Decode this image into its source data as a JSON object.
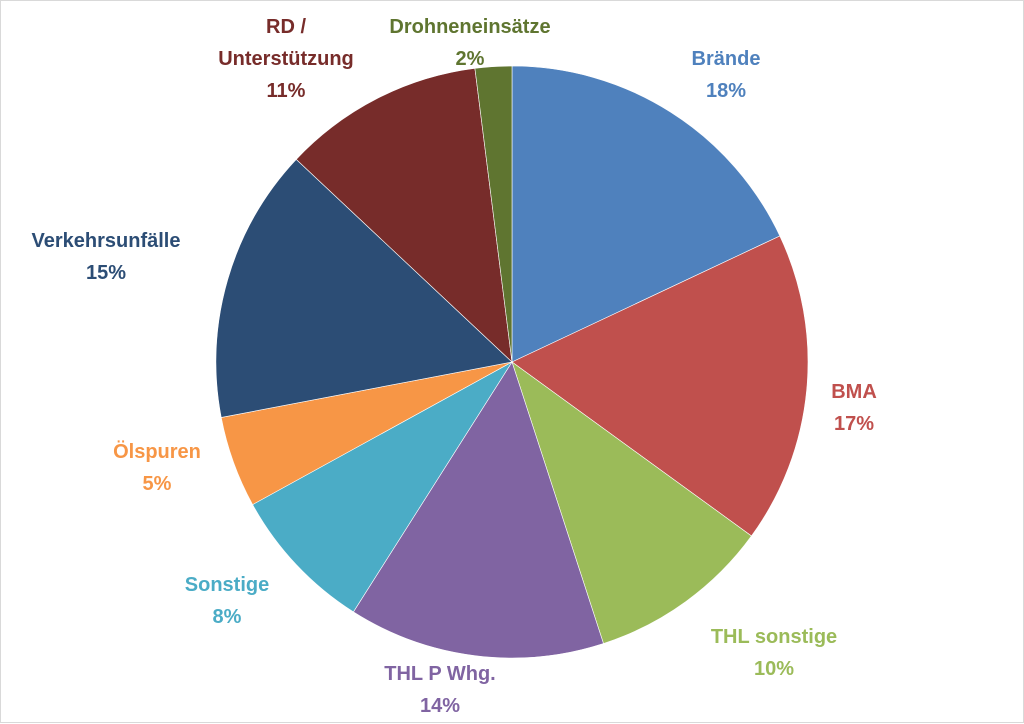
{
  "chart_data": {
    "type": "pie",
    "title": "",
    "slices": [
      {
        "label": "Brände",
        "value": 18,
        "pct": "18%",
        "color": "#4F81BD"
      },
      {
        "label": "BMA",
        "value": 17,
        "pct": "17%",
        "color": "#C0504D"
      },
      {
        "label": "THL sonstige",
        "value": 10,
        "pct": "10%",
        "color": "#9BBB59"
      },
      {
        "label": "THL P Whg.",
        "value": 14,
        "pct": "14%",
        "color": "#8064A2"
      },
      {
        "label": "Sonstige",
        "value": 8,
        "pct": "8%",
        "color": "#4BACC6"
      },
      {
        "label": "Ölspuren",
        "value": 5,
        "pct": "5%",
        "color": "#F79646"
      },
      {
        "label": "Verkehrsunfälle",
        "value": 15,
        "pct": "15%",
        "color": "#2C4D75"
      },
      {
        "label": "RD / Unterstützung",
        "value": 11,
        "pct": "11%",
        "color": "#772C2A",
        "label_lines": [
          "RD /",
          "Unterstützung"
        ]
      },
      {
        "label": "Drohneneinsätze",
        "value": 2,
        "pct": "2%",
        "color": "#5F7530"
      }
    ],
    "legend": "none",
    "data_labels": "outside"
  }
}
